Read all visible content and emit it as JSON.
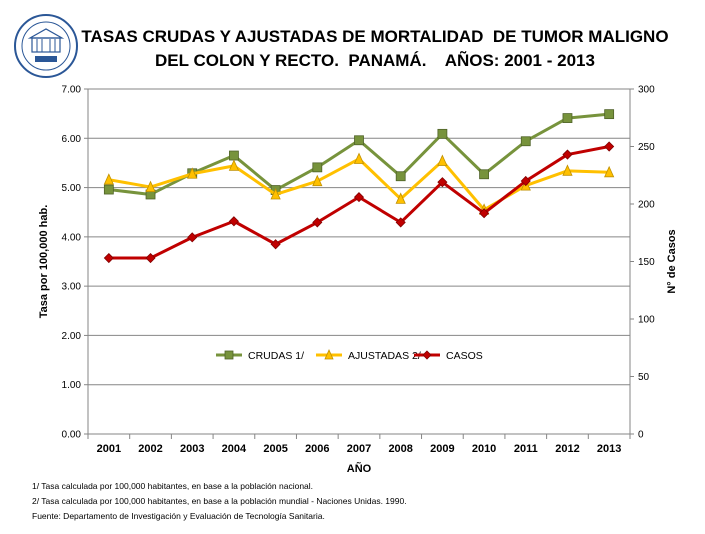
{
  "header": {
    "title_line1": "TASAS CRUDAS Y AJUSTADAS DE MORTALIDAD  DE TUMOR MALIGNO",
    "title_line2": "DEL COLON Y RECTO.  PANAMÁ.    AÑOS: 2001 - 2013",
    "logo_text": "MINISTERIO DE SALUD PANAMÁ 1926"
  },
  "chart_data": {
    "type": "line",
    "title": "TASAS CRUDAS Y AJUSTADAS DE MORTALIDAD  DE TUMOR MALIGNO DEL COLON Y RECTO.  PANAMÁ.    AÑOS: 2001 - 2013",
    "xlabel": "AÑO",
    "ylabel": "Tasa  por 100,000 hab.",
    "y2label": "N° de Casos",
    "categories": [
      "2001",
      "2002",
      "2003",
      "2004",
      "2005",
      "2006",
      "2007",
      "2008",
      "2009",
      "2010",
      "2011",
      "2012",
      "2013"
    ],
    "ylim": [
      0,
      7
    ],
    "y_ticks": [
      "0.00",
      "1.00",
      "2.00",
      "3.00",
      "4.00",
      "5.00",
      "6.00",
      "7.00"
    ],
    "y2lim": [
      0,
      300
    ],
    "y2_ticks": [
      "0",
      "50",
      "100",
      "150",
      "200",
      "250",
      "300"
    ],
    "grid": "horizontal",
    "legend_position": "center",
    "series": [
      {
        "name": "CRUDAS 1/",
        "axis": "left",
        "color": "#77933C",
        "marker": "square",
        "values": [
          4.96,
          4.86,
          5.29,
          5.65,
          4.95,
          5.41,
          5.96,
          5.23,
          6.09,
          5.27,
          5.94,
          6.41,
          6.49
        ]
      },
      {
        "name": "AJUSTADAS 2/",
        "axis": "left",
        "color": "#FFC000",
        "marker": "triangle",
        "values": [
          5.16,
          5.01,
          5.28,
          5.44,
          4.86,
          5.13,
          5.58,
          4.77,
          5.54,
          4.55,
          5.04,
          5.34,
          5.31
        ]
      },
      {
        "name": "CASOS",
        "axis": "right",
        "color": "#C00000",
        "marker": "diamond",
        "values": [
          153,
          153,
          171,
          185,
          165,
          184,
          206,
          184,
          219,
          192,
          220,
          243,
          250
        ]
      }
    ]
  },
  "footnotes": [
    "1/ Tasa calculada por 100,000 habitantes, en base a la población nacional.",
    "2/ Tasa calculada por 100,000 habitantes, en base a la población mundial - Naciones Unidas. 1990.",
    "Fuente: Departamento de Investigación y Evaluación de Tecnología Sanitaria."
  ]
}
